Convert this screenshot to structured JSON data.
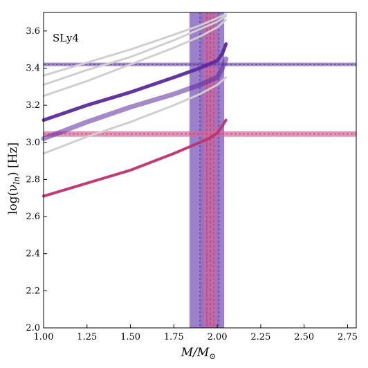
{
  "chart_data": {
    "type": "line",
    "annotation": "SLy4",
    "xlabel": "M/M",
    "xlabel_sub": "⊙",
    "ylabel": "log(ν",
    "ylabel_sub": "ln",
    "ylabel_unit": ") [Hz]",
    "xlim": [
      1.0,
      2.8
    ],
    "ylim": [
      2.0,
      3.7
    ],
    "xticks": [
      "1.00",
      "1.25",
      "1.50",
      "1.75",
      "2.00",
      "2.25",
      "2.50",
      "2.75"
    ],
    "yticks": [
      "2.0",
      "2.2",
      "2.4",
      "2.6",
      "2.8",
      "3.0",
      "3.2",
      "3.4",
      "3.6"
    ],
    "grid": false,
    "colors": {
      "purple": "#5b2a9e",
      "purple_band": "#7a56b8",
      "pink": "#c0306e",
      "pink_band": "#d46a9a",
      "gray": "#cfcfcf"
    },
    "gray_curves": [
      {
        "x": [
          1.0,
          1.25,
          1.5,
          1.75,
          1.9,
          2.0,
          2.05
        ],
        "values": [
          2.94,
          3.03,
          3.11,
          3.2,
          3.26,
          3.31,
          3.35
        ]
      },
      {
        "x": [
          1.0,
          1.25,
          1.5,
          1.75,
          1.9,
          2.0,
          2.05
        ],
        "values": [
          3.25,
          3.33,
          3.42,
          3.51,
          3.57,
          3.62,
          3.66
        ]
      },
      {
        "x": [
          1.0,
          1.25,
          1.5,
          1.75,
          1.9,
          2.0,
          2.05
        ],
        "values": [
          3.31,
          3.39,
          3.46,
          3.55,
          3.61,
          3.65,
          3.68
        ]
      },
      {
        "x": [
          1.0,
          1.25,
          1.5,
          1.75,
          1.9,
          2.0,
          2.05
        ],
        "values": [
          3.36,
          3.43,
          3.5,
          3.58,
          3.63,
          3.67,
          3.69
        ]
      }
    ],
    "series": [
      {
        "color": "purple",
        "alpha": 0.95,
        "width": 5,
        "x": [
          1.0,
          1.25,
          1.5,
          1.75,
          1.9,
          1.95,
          2.0,
          2.03,
          2.05
        ],
        "values": [
          3.12,
          3.2,
          3.27,
          3.35,
          3.4,
          3.42,
          3.44,
          3.48,
          3.53
        ]
      },
      {
        "color": "purple",
        "alpha": 0.55,
        "width": 7,
        "x": [
          1.0,
          1.25,
          1.5,
          1.75,
          1.9,
          1.95,
          2.0,
          2.03,
          2.05
        ],
        "values": [
          3.02,
          3.11,
          3.19,
          3.26,
          3.31,
          3.33,
          3.35,
          3.4,
          3.45
        ]
      },
      {
        "color": "pink",
        "alpha": 0.95,
        "width": 4,
        "x": [
          1.0,
          1.25,
          1.5,
          1.75,
          1.9,
          1.95,
          2.0,
          2.03,
          2.05
        ],
        "values": [
          2.71,
          2.78,
          2.85,
          2.94,
          3.0,
          3.02,
          3.05,
          3.09,
          3.12
        ]
      }
    ],
    "horizontal_bands": [
      {
        "color": "purple",
        "center": 3.42,
        "low": 3.413,
        "high": 3.428
      },
      {
        "color": "pink",
        "center": 3.045,
        "low": 3.03,
        "high": 3.06
      }
    ],
    "vertical_bands": [
      {
        "color": "purple",
        "center": 1.94,
        "low": 1.84,
        "high": 2.04,
        "inner_low": 1.9,
        "inner_high": 2.01
      },
      {
        "color": "pink",
        "center": 1.96,
        "low": 1.92,
        "high": 2.0,
        "inner_low": 1.94,
        "inner_high": 1.98
      }
    ]
  }
}
